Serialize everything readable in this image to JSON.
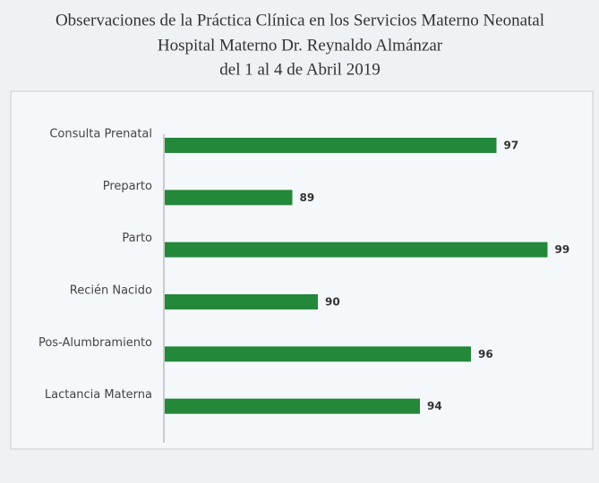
{
  "chart_data": {
    "type": "hbar",
    "title": [
      "Observaciones de la Práctica Clínica en los Servicios Materno Neonatal",
      "Hospital Materno Dr. Reynaldo Almánzar",
      "del 1 al 4 de Abril 2019"
    ],
    "categories": [
      "Consulta Prenatal",
      "Preparto",
      "Parto",
      "Recién Nacido",
      "Pos-Alumbramiento",
      "Lactancia Materna"
    ],
    "values": [
      97,
      89,
      99,
      90,
      96,
      94
    ],
    "color": "#23883a",
    "xlim": [
      84,
      100
    ]
  }
}
